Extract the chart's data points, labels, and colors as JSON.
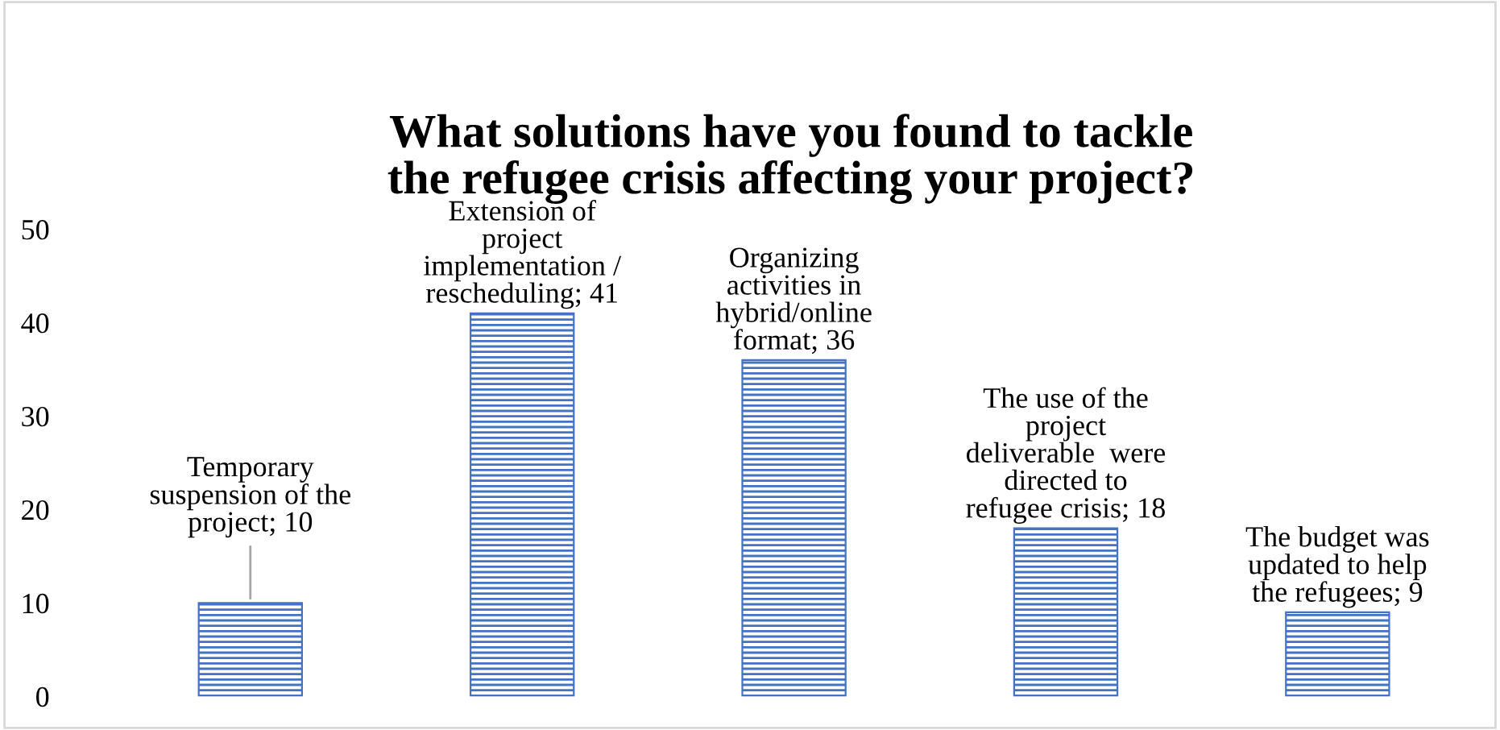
{
  "chart_data": {
    "type": "bar",
    "title": "What solutions have you found to tackle\nthe refugee crisis affecting your project?",
    "categories": [
      null,
      null,
      null,
      null,
      null
    ],
    "values": [
      10,
      41,
      36,
      18,
      9
    ],
    "value_labels": [
      "Temporary\nsuspension of the\nproject; 10",
      "Extension of\nproject\nimplementation /\nrescheduling; 41",
      "Organizing\nactivities in\nhybrid/online\nformat; 36",
      "The use of the\nproject\ndeliverable  were\ndirected to\nrefugee crisis; 18",
      "The budget was\nupdated to help\nthe refugees; 9"
    ],
    "color": "#4472c4",
    "ylim": [
      0,
      50
    ],
    "yticks": [
      0,
      10,
      20,
      30,
      40,
      50
    ],
    "grid": false,
    "legend": false
  }
}
